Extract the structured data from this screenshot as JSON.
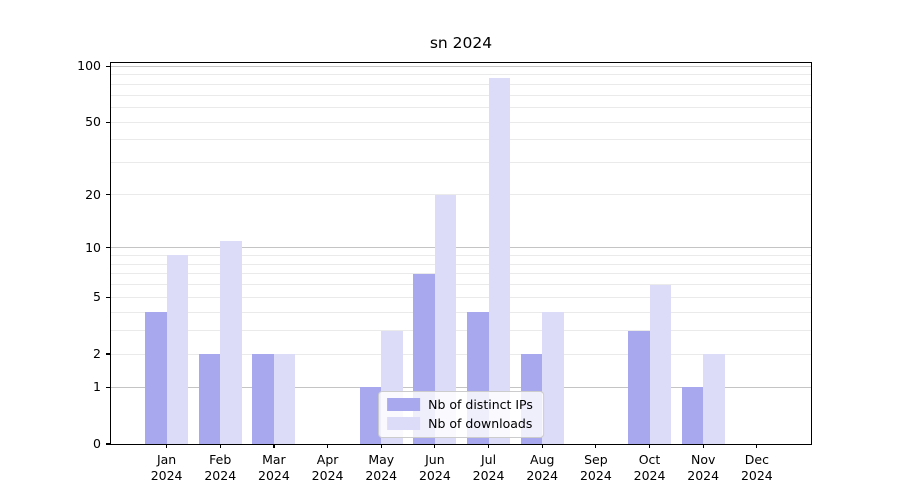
{
  "chart_data": {
    "type": "bar",
    "title": "sn 2024",
    "categories": [
      "Jan 2024",
      "Feb 2024",
      "Mar 2024",
      "Apr 2024",
      "May 2024",
      "Jun 2024",
      "Jul 2024",
      "Aug 2024",
      "Sep 2024",
      "Oct 2024",
      "Nov 2024",
      "Dec 2024"
    ],
    "x_tick_months": [
      "Jan",
      "Feb",
      "Mar",
      "Apr",
      "May",
      "Jun",
      "Jul",
      "Aug",
      "Sep",
      "Oct",
      "Nov",
      "Dec"
    ],
    "x_tick_year": "2024",
    "series": [
      {
        "name": "Nb of distinct IPs",
        "color": "#a8a8ee",
        "values": [
          4,
          2,
          2,
          0,
          1,
          7,
          4,
          2,
          0,
          3,
          1,
          0
        ]
      },
      {
        "name": "Nb of downloads",
        "color": "#dcdcf8",
        "values": [
          9,
          11,
          2,
          0,
          3,
          20,
          86,
          4,
          0,
          6,
          2,
          0
        ]
      }
    ],
    "y_axis": {
      "scale": "log1p",
      "tick_labels": [
        0,
        1,
        2,
        5,
        10,
        20,
        50,
        100
      ],
      "major_gridlines": [
        1,
        10,
        100
      ],
      "minor_gridlines": [
        2,
        3,
        4,
        5,
        6,
        7,
        8,
        9,
        20,
        30,
        40,
        50,
        60,
        70,
        80,
        90
      ],
      "top_value": 104,
      "bottom_value": 0
    },
    "legend": {
      "position": "lower center"
    },
    "grid": true
  },
  "colors": {
    "bar_distinct_ips": "#a8a8ee",
    "bar_downloads": "#dcdcf8",
    "major_gridline": "#c4c4c4",
    "minor_gridline": "#eaeaea",
    "axis": "#000000",
    "legend_border": "#cccccc",
    "background": "#ffffff"
  }
}
